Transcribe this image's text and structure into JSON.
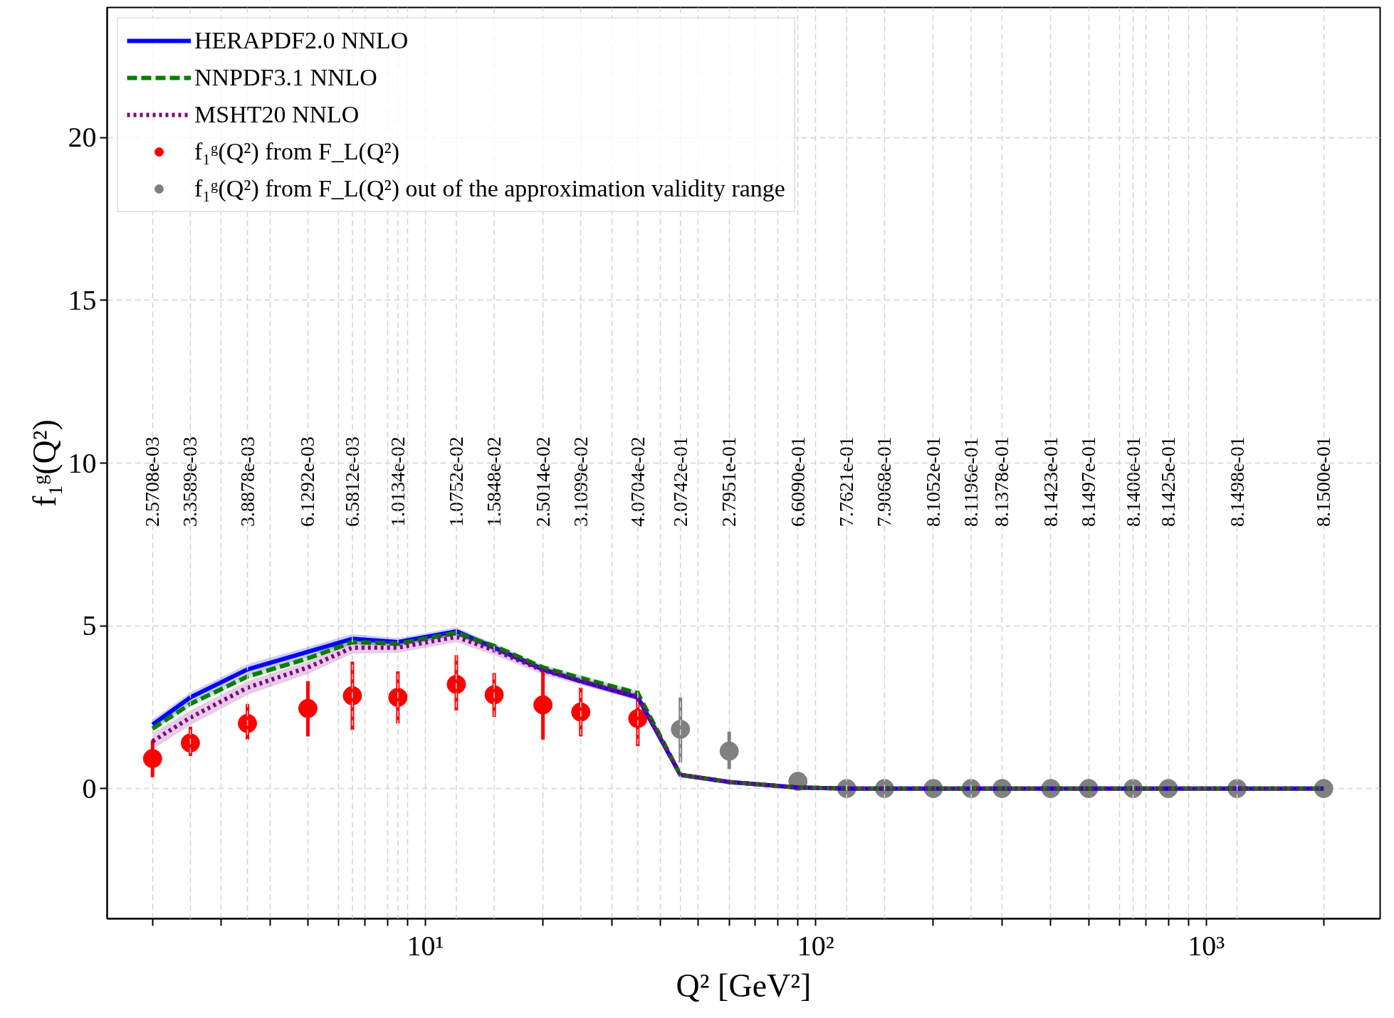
{
  "chart_data": {
    "type": "line",
    "xlabel": "Q² [GeV²]",
    "ylabel": "f₁ᵍ(Q²)",
    "log": "x",
    "xlim": [
      1.53,
      2790
    ],
    "ylim": [
      -4,
      24
    ],
    "xticks": [
      {
        "value": 2,
        "label": null
      },
      {
        "value": 3,
        "label": null
      },
      {
        "value": 4,
        "label": null
      },
      {
        "value": 5,
        "label": null
      },
      {
        "value": 6,
        "label": null
      },
      {
        "value": 7,
        "label": null
      },
      {
        "value": 8,
        "label": null
      },
      {
        "value": 9,
        "label": null
      },
      {
        "value": 10,
        "label": "10¹"
      },
      {
        "value": 20,
        "label": null
      },
      {
        "value": 30,
        "label": null
      },
      {
        "value": 40,
        "label": null
      },
      {
        "value": 50,
        "label": null
      },
      {
        "value": 60,
        "label": null
      },
      {
        "value": 70,
        "label": null
      },
      {
        "value": 80,
        "label": null
      },
      {
        "value": 90,
        "label": null
      },
      {
        "value": 100,
        "label": "10²"
      },
      {
        "value": 200,
        "label": null
      },
      {
        "value": 300,
        "label": null
      },
      {
        "value": 400,
        "label": null
      },
      {
        "value": 500,
        "label": null
      },
      {
        "value": 600,
        "label": null
      },
      {
        "value": 700,
        "label": null
      },
      {
        "value": 800,
        "label": null
      },
      {
        "value": 900,
        "label": null
      },
      {
        "value": 1000,
        "label": "10³"
      },
      {
        "value": 2000,
        "label": null
      }
    ],
    "yticks": [
      0,
      5,
      10,
      15,
      20
    ],
    "grid": true,
    "legend": "top left",
    "x": [
      2,
      2.5,
      3.5,
      5,
      6.5,
      8.5,
      12,
      15,
      20,
      25,
      35,
      45,
      60,
      90,
      120,
      150,
      200,
      250,
      300,
      400,
      500,
      650,
      800,
      1200,
      2000
    ],
    "series": [
      {
        "name": "HERAPDF2.0 NNLO",
        "color": "#0000ff",
        "line_style": "solid",
        "values": [
          1.96,
          2.8,
          3.66,
          4.2,
          4.6,
          4.5,
          4.83,
          4.33,
          3.66,
          3.3,
          2.8,
          0.42,
          0.2,
          0.03,
          0,
          0,
          0,
          0,
          0,
          0,
          0,
          0,
          0,
          0,
          0
        ],
        "lower": [
          1.8,
          2.65,
          3.5,
          4.05,
          4.45,
          4.38,
          4.7,
          4.22,
          3.58,
          3.22,
          2.72,
          0.4,
          0.18,
          0.02,
          0,
          0,
          0,
          0,
          0,
          0,
          0,
          0,
          0,
          0,
          0
        ],
        "upper": [
          2.12,
          2.95,
          3.82,
          4.35,
          4.75,
          4.62,
          4.96,
          4.44,
          3.74,
          3.38,
          2.88,
          0.44,
          0.22,
          0.04,
          0,
          0,
          0,
          0,
          0,
          0,
          0,
          0,
          0,
          0,
          0
        ]
      },
      {
        "name": "NNPDF3.1 NNLO",
        "color": "#008000",
        "line_style": "dashed",
        "values": [
          1.84,
          2.6,
          3.44,
          4.0,
          4.5,
          4.45,
          4.78,
          4.38,
          3.72,
          3.4,
          2.93,
          0.42,
          0.2,
          0.03,
          0,
          0,
          0,
          0,
          0,
          0,
          0,
          0,
          0,
          0,
          0
        ],
        "lower": [
          1.76,
          2.52,
          3.36,
          3.92,
          4.42,
          4.38,
          4.7,
          4.3,
          3.64,
          3.32,
          2.85,
          0.4,
          0.18,
          0.02,
          0,
          0,
          0,
          0,
          0,
          0,
          0,
          0,
          0,
          0,
          0
        ],
        "upper": [
          1.92,
          2.68,
          3.52,
          4.08,
          4.58,
          4.52,
          4.86,
          4.46,
          3.8,
          3.48,
          3.01,
          0.44,
          0.22,
          0.04,
          0,
          0,
          0,
          0,
          0,
          0,
          0,
          0,
          0,
          0,
          0
        ]
      },
      {
        "name": "MSHT20 NNLO",
        "color": "#800080",
        "line_style": "dotted",
        "values": [
          1.45,
          2.18,
          3.1,
          3.72,
          4.33,
          4.33,
          4.66,
          4.25,
          3.63,
          3.3,
          2.82,
          0.42,
          0.2,
          0.03,
          0,
          0,
          0,
          0,
          0,
          0,
          0,
          0,
          0,
          0,
          0
        ],
        "lower": [
          1.2,
          1.95,
          2.88,
          3.52,
          4.15,
          4.17,
          4.5,
          4.1,
          3.5,
          3.18,
          2.7,
          0.4,
          0.18,
          0.02,
          0,
          0,
          0,
          0,
          0,
          0,
          0,
          0,
          0,
          0,
          0
        ],
        "upper": [
          1.7,
          2.4,
          3.3,
          3.9,
          4.5,
          4.48,
          4.8,
          4.4,
          3.76,
          3.42,
          2.94,
          0.44,
          0.22,
          0.04,
          0,
          0,
          0,
          0,
          0,
          0,
          0,
          0,
          0,
          0,
          0
        ]
      },
      {
        "name": "f₁ᵍ(Q²) from F_L(Q²)",
        "type": "scatter",
        "marker": "circle",
        "color": "#ff0000",
        "x": [
          2,
          2.5,
          3.5,
          5,
          6.5,
          8.5,
          12,
          15,
          20,
          25,
          35
        ],
        "values": [
          0.92,
          1.4,
          2.0,
          2.46,
          2.85,
          2.8,
          3.2,
          2.88,
          2.57,
          2.35,
          2.15
        ],
        "errors": [
          [
            0.35,
            1.48
          ],
          [
            1.0,
            1.9
          ],
          [
            1.5,
            2.6
          ],
          [
            1.6,
            3.3
          ],
          [
            1.8,
            3.9
          ],
          [
            2.0,
            3.6
          ],
          [
            2.4,
            4.1
          ],
          [
            2.2,
            3.55
          ],
          [
            1.5,
            3.6
          ],
          [
            1.6,
            3.1
          ],
          [
            1.3,
            3.0
          ]
        ]
      },
      {
        "name": "f₁ᵍ(Q²) from F_L(Q²) out of the approximation validity range",
        "type": "scatter",
        "marker": "circle",
        "color": "#808080",
        "x": [
          45,
          60,
          90,
          120,
          150,
          200,
          250,
          300,
          400,
          500,
          650,
          800,
          1200,
          2000
        ],
        "values": [
          1.82,
          1.15,
          0.22,
          0,
          0,
          0,
          0,
          0,
          0,
          0,
          0,
          0,
          0,
          0
        ],
        "errors": [
          [
            0.8,
            2.8
          ],
          [
            0.6,
            1.75
          ],
          [
            0.0,
            0.5
          ],
          null,
          null,
          null,
          null,
          null,
          null,
          null,
          null,
          null,
          null,
          null
        ]
      }
    ],
    "ref_lines": [
      {
        "axis": "x",
        "value": 2.5,
        "color": "#d3d3d3",
        "line_style": "dashed"
      },
      {
        "axis": "x",
        "value": 3.5,
        "color": "#d3d3d3",
        "line_style": "dashed"
      },
      {
        "axis": "x",
        "value": 6.5,
        "color": "#d3d3d3",
        "line_style": "dashed"
      },
      {
        "axis": "x",
        "value": 8.5,
        "color": "#d3d3d3",
        "line_style": "dashed"
      },
      {
        "axis": "x",
        "value": 12,
        "color": "#d3d3d3",
        "line_style": "dashed"
      },
      {
        "axis": "x",
        "value": 15,
        "color": "#d3d3d3",
        "line_style": "dashed"
      },
      {
        "axis": "x",
        "value": 25,
        "color": "#d3d3d3",
        "line_style": "dashed"
      },
      {
        "axis": "x",
        "value": 35,
        "color": "#d3d3d3",
        "line_style": "dashed"
      },
      {
        "axis": "x",
        "value": 45,
        "color": "#d3d3d3",
        "line_style": "dashed"
      },
      {
        "axis": "x",
        "value": 120,
        "color": "#d3d3d3",
        "line_style": "dashed"
      },
      {
        "axis": "x",
        "value": 150,
        "color": "#d3d3d3",
        "line_style": "dashed"
      },
      {
        "axis": "x",
        "value": 250,
        "color": "#d3d3d3",
        "line_style": "dashed"
      },
      {
        "axis": "x",
        "value": 650,
        "color": "#d3d3d3",
        "line_style": "dashed"
      },
      {
        "axis": "x",
        "value": 1200,
        "color": "#d3d3d3",
        "line_style": "dashed"
      }
    ],
    "annotations": [
      "2.5708e-03",
      "3.3589e-03",
      "3.8878e-03",
      "6.1292e-03",
      "6.5812e-03",
      "1.0134e-02",
      "1.0752e-02",
      "1.5848e-02",
      "2.5014e-02",
      "3.1099e-02",
      "4.0704e-02",
      "2.0742e-01",
      "2.7951e-01",
      "6.6090e-01",
      "7.7621e-01",
      "7.9068e-01",
      "8.1052e-01",
      "8.1196e-01",
      "8.1378e-01",
      "8.1423e-01",
      "8.1497e-01",
      "8.1400e-01",
      "8.1425e-01",
      "8.1498e-01",
      "8.1500e-01"
    ]
  }
}
